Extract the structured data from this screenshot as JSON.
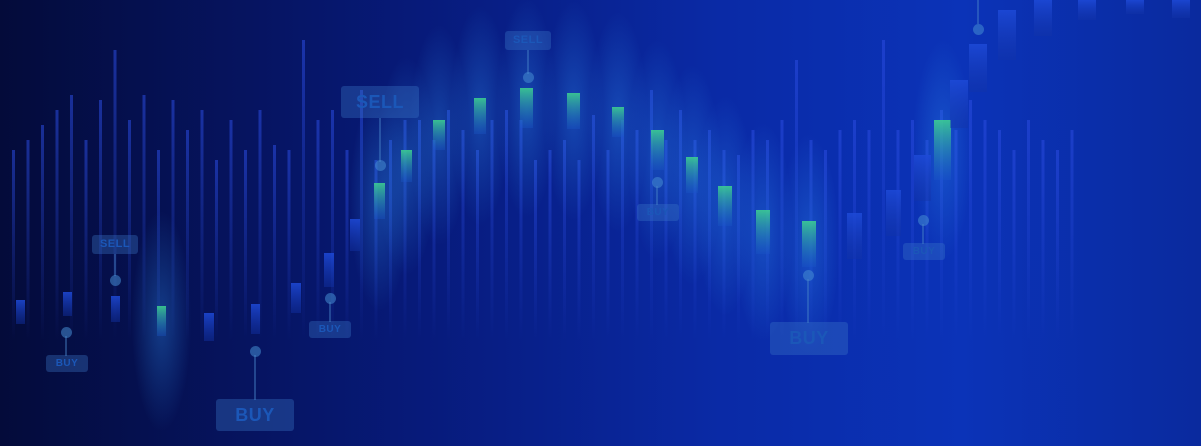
{
  "markers": [
    {
      "label": "SELL"
    },
    {
      "label": "SELL"
    },
    {
      "label": "SELL"
    },
    {
      "label": "BUY"
    },
    {
      "label": "BUY"
    },
    {
      "label": "BUY"
    },
    {
      "label": "BUY"
    },
    {
      "label": "BUY"
    }
  ],
  "colors": {
    "background_dark": "#040b3a",
    "background_light": "#0b33b8",
    "candle_blue": "#1436c8",
    "candle_green": "#35c48a",
    "tag_text": "#1b57b8"
  }
}
